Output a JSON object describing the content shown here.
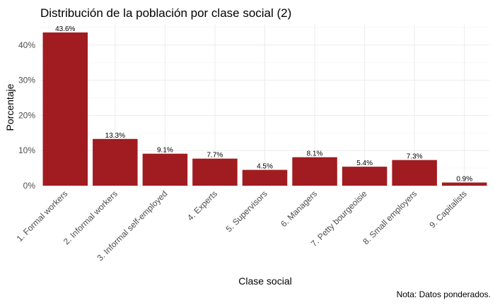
{
  "chart_data": {
    "type": "bar",
    "title": "Distribución de la población por clase social (2)",
    "xlabel": "Clase social",
    "ylabel": "Porcentaje",
    "caption": "Nota: Datos ponderados.",
    "categories": [
      "1. Formal workers",
      "2. Informal workers",
      "3. Informal self-employed",
      "4. Experts",
      "5. Supervisors",
      "6. Managers",
      "7. Petty bourgeoisie",
      "8. Small employers",
      "9. Capitalists"
    ],
    "values": [
      43.6,
      13.3,
      9.1,
      7.7,
      4.5,
      8.1,
      5.4,
      7.3,
      0.9
    ],
    "data_labels": [
      "43.6%",
      "13.3%",
      "9.1%",
      "7.7%",
      "4.5%",
      "8.1%",
      "5.4%",
      "7.3%",
      "0.9%"
    ],
    "y_ticks": [
      0,
      10,
      20,
      30,
      40
    ],
    "y_tick_labels": [
      "0%",
      "10%",
      "20%",
      "30%",
      "40%"
    ],
    "ylim": [
      0,
      45.8
    ],
    "grid": true,
    "legend": "none",
    "bar_color": "#a01c20"
  }
}
